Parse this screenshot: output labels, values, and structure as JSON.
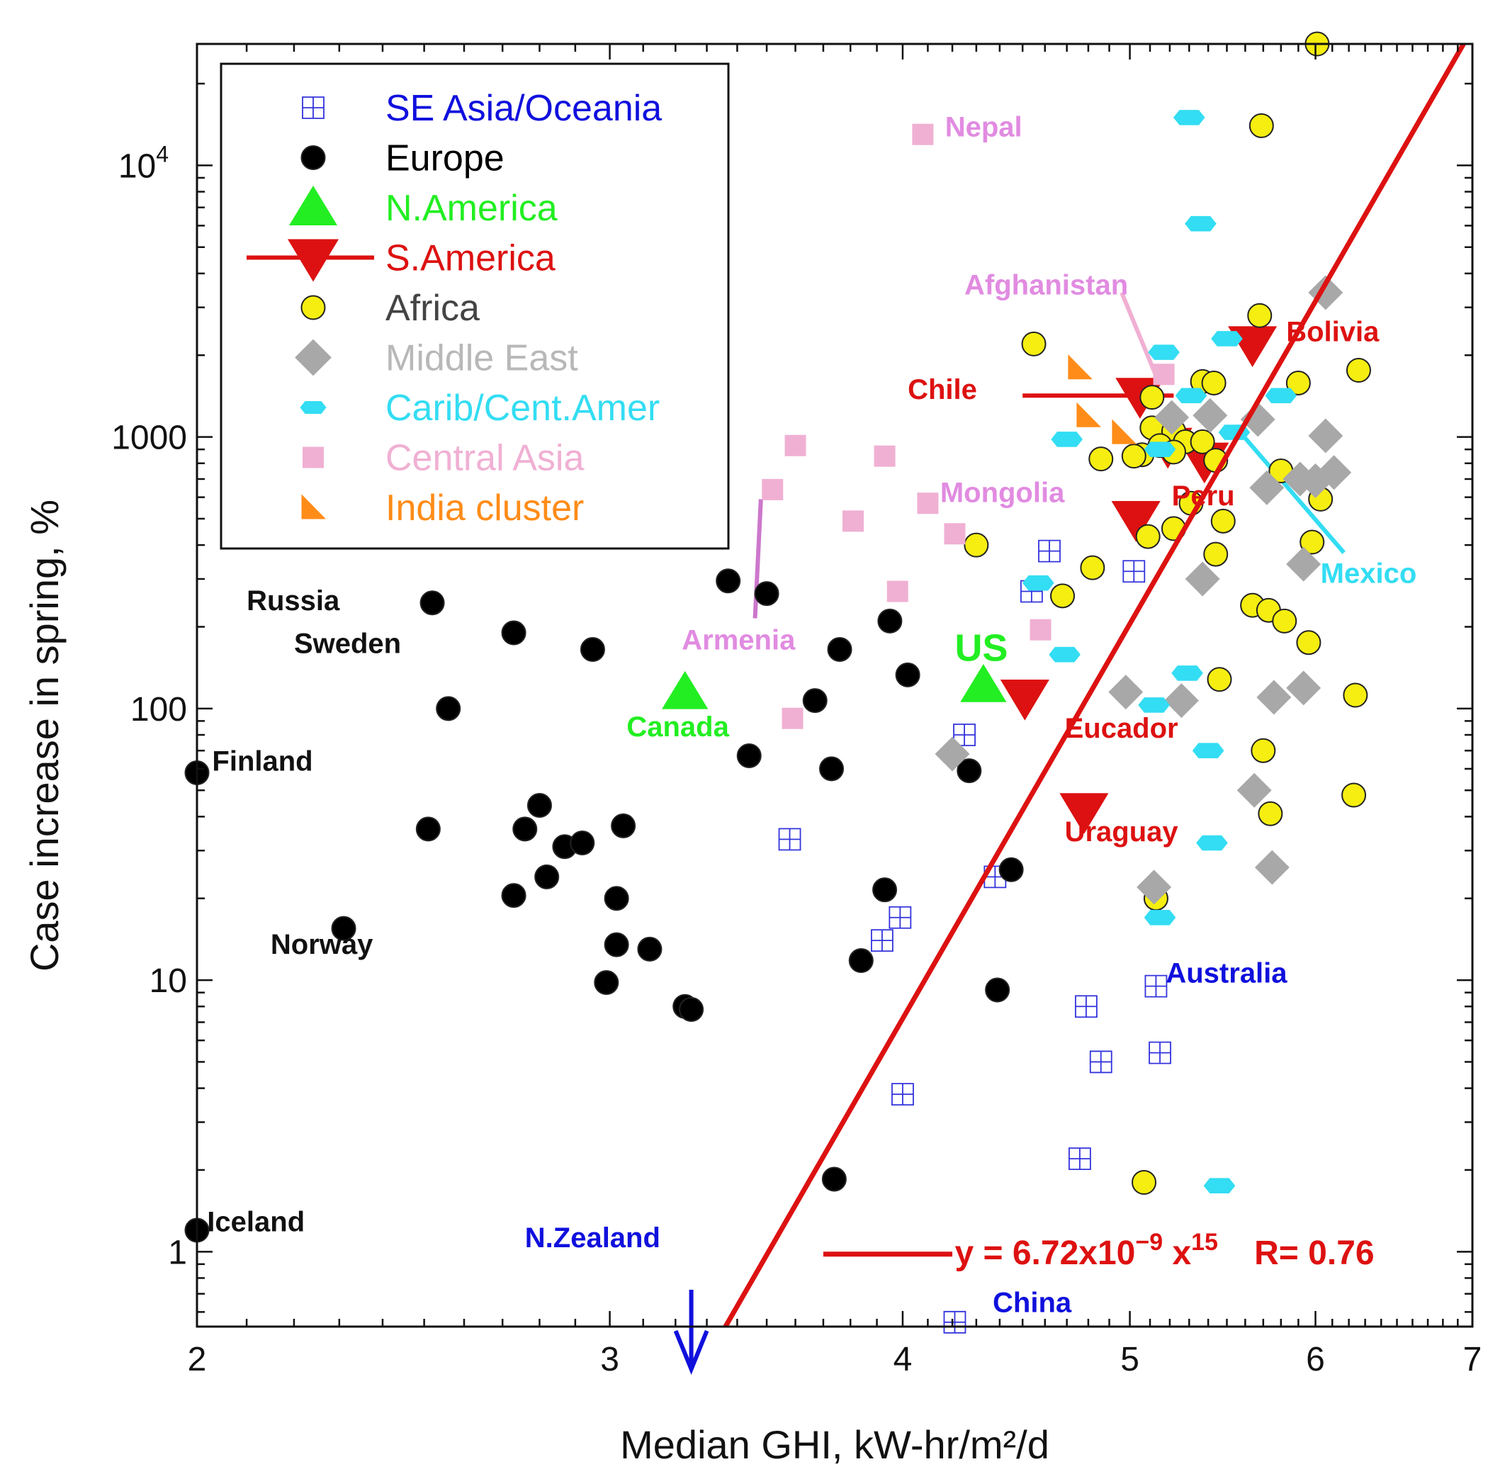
{
  "chart_data": {
    "type": "scatter",
    "title": "",
    "xlabel": "Median GHI, kW-hr/m²/d",
    "ylabel": "Case increase in spring, %",
    "xscale": "log",
    "yscale": "log",
    "xlim": [
      2,
      7
    ],
    "ylim": [
      0.53,
      28000
    ],
    "grid": false,
    "legend_position": "top-left",
    "x_ticks": [
      {
        "value": 2,
        "label": "2"
      },
      {
        "value": 3,
        "label": "3"
      },
      {
        "value": 4,
        "label": "4"
      },
      {
        "value": 5,
        "label": "5"
      },
      {
        "value": 6,
        "label": "6"
      },
      {
        "value": 7,
        "label": "7"
      }
    ],
    "y_ticks": [
      {
        "value": 1,
        "label": "1"
      },
      {
        "value": 10,
        "label": "10"
      },
      {
        "value": 100,
        "label": "100"
      },
      {
        "value": 1000,
        "label": "1000"
      },
      {
        "value": 10000,
        "label": "10",
        "sup": "4"
      }
    ],
    "series": [
      {
        "name": "SE Asia/Oceania",
        "marker": "square-cross",
        "color": "#3333dd",
        "label_color": "#1010dd",
        "points": [
          [
            4.62,
            380
          ],
          [
            4.54,
            270
          ],
          [
            5.02,
            320
          ],
          [
            4.25,
            80
          ],
          [
            3.58,
            33
          ],
          [
            4.38,
            24
          ],
          [
            3.99,
            17
          ],
          [
            3.92,
            14
          ],
          [
            4.79,
            8
          ],
          [
            5.13,
            9.5
          ],
          [
            4.86,
            5
          ],
          [
            5.15,
            5.4
          ],
          [
            4.0,
            3.8
          ],
          [
            4.76,
            2.2
          ],
          [
            4.21,
            0.55
          ]
        ]
      },
      {
        "name": "Europe",
        "marker": "circle",
        "color": "#000000",
        "label_color": "#000000",
        "points": [
          [
            2.0,
            58
          ],
          [
            2.0,
            1.2
          ],
          [
            2.52,
            245
          ],
          [
            2.73,
            190
          ],
          [
            2.56,
            100
          ],
          [
            2.95,
            165
          ],
          [
            2.51,
            36
          ],
          [
            2.8,
            44
          ],
          [
            2.76,
            36
          ],
          [
            2.87,
            31
          ],
          [
            2.92,
            32
          ],
          [
            3.04,
            37
          ],
          [
            2.82,
            24
          ],
          [
            2.73,
            20.5
          ],
          [
            3.02,
            20
          ],
          [
            3.02,
            13.5
          ],
          [
            3.12,
            13
          ],
          [
            2.99,
            9.8
          ],
          [
            3.23,
            8
          ],
          [
            3.25,
            7.8
          ],
          [
            2.31,
            15.5
          ],
          [
            3.37,
            295
          ],
          [
            3.5,
            265
          ],
          [
            3.44,
            67
          ],
          [
            3.76,
            165
          ],
          [
            3.67,
            107
          ],
          [
            3.95,
            210
          ],
          [
            4.02,
            133
          ],
          [
            3.73,
            60
          ],
          [
            4.27,
            59
          ],
          [
            3.93,
            21.5
          ],
          [
            3.84,
            11.8
          ],
          [
            4.45,
            25.5
          ],
          [
            4.39,
            9.2
          ],
          [
            3.74,
            1.85
          ]
        ]
      },
      {
        "name": "N.America",
        "marker": "triangle-up",
        "color": "#22ee22",
        "label_color": "#22ee22",
        "points": [
          [
            3.23,
            115
          ],
          [
            4.33,
            122
          ]
        ]
      },
      {
        "name": "S.America",
        "marker": "triangle-down",
        "color": "#dd1111",
        "label_color": "#dd1111",
        "points": [
          [
            5.64,
            2200
          ],
          [
            5.05,
            1420
          ],
          [
            5.03,
            500
          ],
          [
            5.19,
            930
          ],
          [
            5.38,
            820
          ],
          [
            4.51,
            110
          ],
          [
            4.78,
            42
          ]
        ]
      },
      {
        "name": "Africa",
        "marker": "circle",
        "color": "#f5ee10",
        "label_color": "#444444",
        "points": [
          [
            6.01,
            28000
          ],
          [
            5.69,
            14000
          ],
          [
            5.68,
            2800
          ],
          [
            4.55,
            2200
          ],
          [
            5.37,
            1600
          ],
          [
            5.11,
            1400
          ],
          [
            5.43,
            1580
          ],
          [
            5.9,
            1580
          ],
          [
            6.26,
            1760
          ],
          [
            5.11,
            1080
          ],
          [
            5.22,
            1050
          ],
          [
            5.28,
            960
          ],
          [
            5.37,
            960
          ],
          [
            5.15,
            930
          ],
          [
            5.22,
            880
          ],
          [
            5.06,
            860
          ],
          [
            5.02,
            850
          ],
          [
            4.86,
            830
          ],
          [
            5.44,
            820
          ],
          [
            5.8,
            750
          ],
          [
            6.03,
            590
          ],
          [
            5.31,
            570
          ],
          [
            5.48,
            490
          ],
          [
            5.22,
            460
          ],
          [
            5.09,
            430
          ],
          [
            5.98,
            410
          ],
          [
            4.3,
            400
          ],
          [
            5.44,
            370
          ],
          [
            4.82,
            330
          ],
          [
            4.68,
            260
          ],
          [
            5.64,
            240
          ],
          [
            5.73,
            230
          ],
          [
            5.82,
            210
          ],
          [
            5.96,
            175
          ],
          [
            5.46,
            128
          ],
          [
            6.24,
            112
          ],
          [
            5.7,
            70
          ],
          [
            5.74,
            41
          ],
          [
            6.23,
            48
          ],
          [
            5.13,
            20
          ],
          [
            5.07,
            1.8
          ]
        ]
      },
      {
        "name": "Middle East",
        "marker": "diamond",
        "color": "#a8a8a8",
        "label_color": "#b8b8b8",
        "points": [
          [
            6.06,
            3400
          ],
          [
            5.21,
            1180
          ],
          [
            5.41,
            1200
          ],
          [
            5.67,
            1160
          ],
          [
            6.06,
            1010
          ],
          [
            5.91,
            700
          ],
          [
            6.11,
            740
          ],
          [
            5.72,
            650
          ],
          [
            6.0,
            690
          ],
          [
            5.93,
            340
          ],
          [
            5.37,
            300
          ],
          [
            4.98,
            115
          ],
          [
            5.26,
            107
          ],
          [
            5.76,
            110
          ],
          [
            5.93,
            119
          ],
          [
            4.2,
            68
          ],
          [
            5.65,
            50
          ],
          [
            5.75,
            26
          ],
          [
            5.12,
            22
          ]
        ]
      },
      {
        "name": "Carib/Cent.Amer",
        "marker": "dash",
        "color": "#33ddf3",
        "label_color": "#33ddf3",
        "points": [
          [
            5.3,
            15000
          ],
          [
            5.36,
            6100
          ],
          [
            5.17,
            2050
          ],
          [
            5.5,
            2300
          ],
          [
            5.31,
            1420
          ],
          [
            5.8,
            1420
          ],
          [
            4.7,
            980
          ],
          [
            5.15,
            900
          ],
          [
            5.54,
            1040
          ],
          [
            4.57,
            290
          ],
          [
            4.69,
            158
          ],
          [
            5.29,
            135
          ],
          [
            5.12,
            103
          ],
          [
            5.4,
            70
          ],
          [
            5.42,
            32
          ],
          [
            5.15,
            17
          ],
          [
            5.46,
            1.75
          ]
        ]
      },
      {
        "name": "Central Asia",
        "marker": "square",
        "color": "#f0b0d3",
        "label_color": "#f0b0d3",
        "points": [
          [
            4.08,
            13000
          ],
          [
            3.6,
            930
          ],
          [
            3.93,
            850
          ],
          [
            3.52,
            640
          ],
          [
            3.81,
            490
          ],
          [
            4.1,
            570
          ],
          [
            4.21,
            440
          ],
          [
            3.98,
            270
          ],
          [
            4.58,
            195
          ],
          [
            3.59,
            92
          ],
          [
            5.17,
            1700
          ]
        ]
      },
      {
        "name": "India cluster",
        "marker": "half-triangle",
        "color": "#ff8c18",
        "label_color": "#ff8c18",
        "points": [
          [
            4.76,
            1800
          ],
          [
            4.8,
            1200
          ],
          [
            4.97,
            1040
          ]
        ]
      }
    ],
    "annotations": [
      {
        "text": "Russia",
        "x": 2.1,
        "y": 230,
        "color": "#111111"
      },
      {
        "text": "Sweden",
        "x": 2.2,
        "y": 160,
        "color": "#111111"
      },
      {
        "text": "Finland",
        "x": 2.03,
        "y": 59,
        "color": "#111111"
      },
      {
        "text": "Norway",
        "x": 2.15,
        "y": 12.5,
        "color": "#111111"
      },
      {
        "text": "Iceland",
        "x": 2.02,
        "y": 1.19,
        "color": "#111111"
      },
      {
        "text": "Nepal",
        "x": 4.17,
        "y": 12800,
        "color": "#e18be1"
      },
      {
        "text": "Afghanistan",
        "x": 4.25,
        "y": 3350,
        "color": "#e18be1"
      },
      {
        "text": "Mongolia",
        "x": 4.15,
        "y": 575,
        "color": "#e18be1"
      },
      {
        "text": "Armenia",
        "x": 3.22,
        "y": 165,
        "color": "#e18be1"
      },
      {
        "text": "Canada",
        "x": 3.05,
        "y": 79,
        "color": "#22ee22"
      },
      {
        "text": "US",
        "x": 4.21,
        "y": 150,
        "color": "#22ee22"
      },
      {
        "text": "Chile",
        "x": 4.02,
        "y": 1380,
        "color": "#dd1111"
      },
      {
        "text": "Bolivia",
        "x": 5.83,
        "y": 2250,
        "color": "#dd1111"
      },
      {
        "text": "Peru",
        "x": 5.21,
        "y": 560,
        "color": "#dd1111"
      },
      {
        "text": "Eucador",
        "x": 4.69,
        "y": 78,
        "color": "#dd1111"
      },
      {
        "text": "Uraguay",
        "x": 4.69,
        "y": 32.5,
        "color": "#dd1111"
      },
      {
        "text": "Mexico",
        "x": 6.03,
        "y": 290,
        "color": "#33ddf3"
      },
      {
        "text": "Australia",
        "x": 5.18,
        "y": 9.8,
        "color": "#1010dd"
      },
      {
        "text": "N.Zealand",
        "x": 2.76,
        "y": 1.04,
        "color": "#1010dd"
      },
      {
        "text": "China",
        "x": 4.37,
        "y": 0.6,
        "color": "#1010dd"
      }
    ],
    "fit": {
      "label": "y = 6.72x10",
      "label_sup": "−9",
      "label_x": " x",
      "label_x_sup": "15",
      "r_label": "R= 0.76",
      "coef": 6.72e-09,
      "exponent": 15,
      "color": "#dd1111",
      "legend_line_x": [
        3.7,
        4.2
      ],
      "legend_line_y": 0.98,
      "text_x": 4.21,
      "r_text_x": 5.65,
      "text_y": 0.9
    },
    "chile_bar": {
      "x": [
        4.5,
        5.22
      ],
      "y": 1420,
      "color": "#dd1111"
    },
    "leaders": [
      {
        "from": [
          3.48,
          590
        ],
        "to": [
          3.46,
          215
        ],
        "color": "#cc77cc"
      },
      {
        "from": [
          4.96,
          3400
        ],
        "to": [
          5.15,
          1550
        ],
        "color": "#f0b0d3"
      },
      {
        "from": [
          5.6,
          990
        ],
        "to": [
          6.17,
          375
        ],
        "color": "#33ddf3"
      }
    ],
    "nz_arrow": {
      "x": 3.25,
      "y_top": 0.53,
      "color": "#1010dd"
    }
  }
}
